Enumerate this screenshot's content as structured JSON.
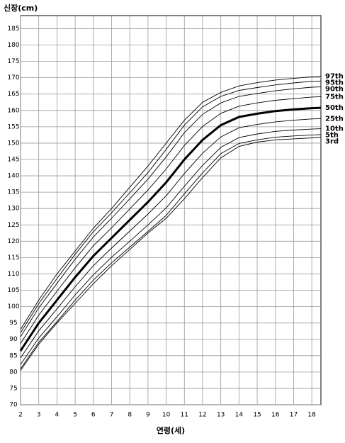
{
  "chart_data": {
    "type": "line",
    "y_label": "신장(cm)",
    "x_label": "연령(세)",
    "x": [
      2,
      3,
      4,
      5,
      6,
      7,
      8,
      9,
      10,
      11,
      12,
      13,
      14,
      15,
      16,
      17,
      18,
      18.5
    ],
    "xlim": [
      2,
      18.5
    ],
    "xticks": [
      2,
      3,
      4,
      5,
      6,
      7,
      8,
      9,
      10,
      11,
      12,
      13,
      14,
      15,
      16,
      17,
      18
    ],
    "ylim": [
      70,
      189
    ],
    "yticks": [
      70,
      75,
      80,
      85,
      90,
      95,
      100,
      105,
      110,
      115,
      120,
      125,
      130,
      135,
      140,
      145,
      150,
      155,
      160,
      165,
      170,
      175,
      180,
      185
    ],
    "grid": true,
    "series": [
      {
        "name": "97th",
        "color": "#000000",
        "values": [
          93,
          102,
          110,
          117,
          124,
          130,
          136.5,
          143,
          150,
          157,
          162.5,
          165.5,
          167.5,
          168.5,
          169.3,
          169.8,
          170.3,
          170.5
        ]
      },
      {
        "name": "95th",
        "color": "#000000",
        "values": [
          92.0,
          100.9,
          108.6,
          116.0,
          122.9,
          128.7,
          134.8,
          141.0,
          148.1,
          155.5,
          161.1,
          164.3,
          166.1,
          167.0,
          167.8,
          168.4,
          168.9,
          169.0
        ]
      },
      {
        "name": "90th",
        "color": "#000000",
        "values": [
          90.8,
          99.6,
          107.1,
          114.5,
          121.3,
          127.0,
          133.0,
          139.0,
          145.8,
          153.2,
          158.8,
          162.3,
          164.3,
          165.2,
          166.0,
          166.6,
          167.1,
          167.2
        ]
      },
      {
        "name": "75th",
        "color": "#000000",
        "values": [
          88.7,
          97.4,
          104.7,
          111.9,
          118.6,
          124.1,
          129.9,
          135.7,
          142.1,
          149.3,
          155.1,
          159.1,
          161.3,
          162.3,
          163.1,
          163.6,
          164.1,
          164.2
        ]
      },
      {
        "name": "50th",
        "color": "#000000",
        "bold": true,
        "values": [
          86.5,
          95,
          102,
          109,
          115.5,
          121,
          126.5,
          132,
          138,
          145,
          151,
          155.5,
          158,
          159,
          159.8,
          160.3,
          160.7,
          160.8
        ]
      },
      {
        "name": "25th",
        "color": "#000000",
        "values": [
          84.3,
          92.6,
          99.3,
          106.1,
          112.5,
          117.9,
          123.1,
          128.3,
          133.9,
          140.7,
          146.9,
          151.9,
          154.7,
          155.7,
          156.5,
          157.0,
          157.4,
          157.5
        ]
      },
      {
        "name": "10th",
        "color": "#000000",
        "values": [
          82.3,
          90.4,
          96.9,
          103.6,
          109.7,
          115.1,
          120.0,
          125.0,
          130.2,
          136.8,
          143.2,
          148.7,
          151.7,
          152.8,
          153.6,
          154.0,
          154.3,
          154.4
        ]
      },
      {
        "name": "5th",
        "color": "#000000",
        "values": [
          81.0,
          89.1,
          95.4,
          102.0,
          108.1,
          113.4,
          118.2,
          123.0,
          127.9,
          134.5,
          140.9,
          146.8,
          149.9,
          151.0,
          151.8,
          152.2,
          152.5,
          152.6
        ]
      },
      {
        "name": "3rd",
        "color": "#000000",
        "values": [
          80.5,
          88.5,
          95,
          101,
          107,
          112.5,
          117.5,
          122.5,
          127,
          133,
          139.5,
          145.5,
          149,
          150.3,
          151,
          151.3,
          151.6,
          151.8
        ]
      }
    ]
  }
}
